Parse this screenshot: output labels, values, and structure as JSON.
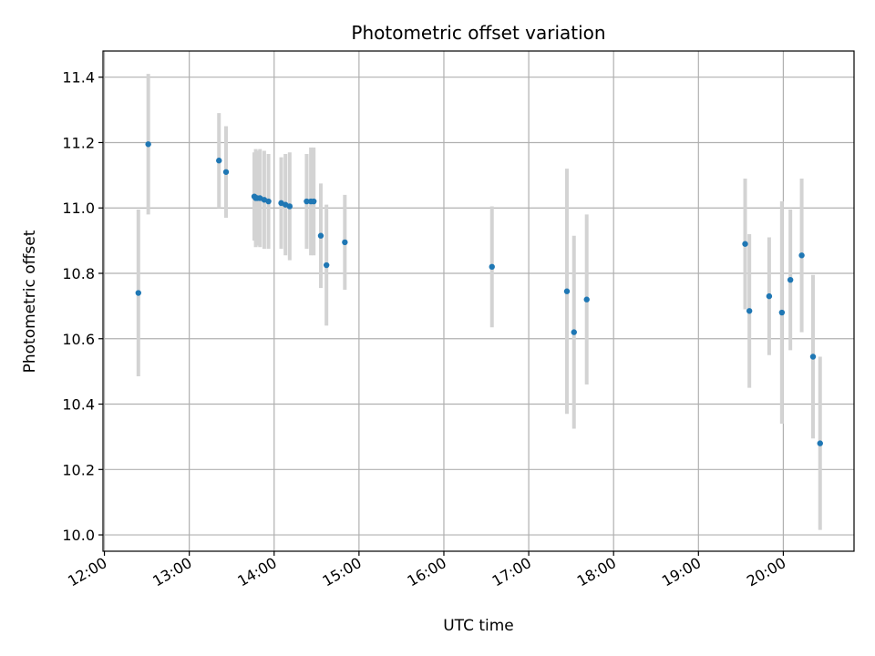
{
  "chart_data": {
    "type": "scatter",
    "title": "Photometric offset variation",
    "xlabel": "UTC time",
    "ylabel": "Photometric offset",
    "grid": true,
    "xlim": [
      "11:59",
      "20:50"
    ],
    "ylim": [
      9.95,
      11.48
    ],
    "x_ticks": [
      "12:00",
      "13:00",
      "14:00",
      "15:00",
      "16:00",
      "17:00",
      "18:00",
      "19:00",
      "20:00"
    ],
    "y_ticks": [
      10.0,
      10.2,
      10.4,
      10.6,
      10.8,
      11.0,
      11.2,
      11.4
    ],
    "colors": {
      "point": "#1f77b4",
      "errorbar": "#d3d3d3",
      "grid": "#b0b0b0"
    },
    "points": [
      {
        "x": "12:24",
        "y": 10.74,
        "yerr": 0.255
      },
      {
        "x": "12:31",
        "y": 11.195,
        "yerr": 0.215
      },
      {
        "x": "13:21",
        "y": 11.145,
        "yerr": 0.145
      },
      {
        "x": "13:26",
        "y": 11.11,
        "yerr": 0.14
      },
      {
        "x": "13:46",
        "y": 11.035,
        "yerr": 0.135
      },
      {
        "x": "13:47",
        "y": 11.03,
        "yerr": 0.15
      },
      {
        "x": "13:48",
        "y": 11.03,
        "yerr": 0.145
      },
      {
        "x": "13:50",
        "y": 11.03,
        "yerr": 0.15
      },
      {
        "x": "13:53",
        "y": 11.025,
        "yerr": 0.15
      },
      {
        "x": "13:56",
        "y": 11.02,
        "yerr": 0.145
      },
      {
        "x": "14:05",
        "y": 11.015,
        "yerr": 0.14
      },
      {
        "x": "14:08",
        "y": 11.01,
        "yerr": 0.155
      },
      {
        "x": "14:11",
        "y": 11.005,
        "yerr": 0.165
      },
      {
        "x": "14:23",
        "y": 11.02,
        "yerr": 0.145
      },
      {
        "x": "14:26",
        "y": 11.02,
        "yerr": 0.165
      },
      {
        "x": "14:28",
        "y": 11.02,
        "yerr": 0.165
      },
      {
        "x": "14:33",
        "y": 10.915,
        "yerr": 0.16
      },
      {
        "x": "14:37",
        "y": 10.825,
        "yerr": 0.185
      },
      {
        "x": "14:50",
        "y": 10.895,
        "yerr": 0.145
      },
      {
        "x": "16:34",
        "y": 10.82,
        "yerr": 0.185
      },
      {
        "x": "17:27",
        "y": 10.745,
        "yerr": 0.375
      },
      {
        "x": "17:32",
        "y": 10.62,
        "yerr": 0.295
      },
      {
        "x": "17:41",
        "y": 10.72,
        "yerr": 0.26
      },
      {
        "x": "19:33",
        "y": 10.89,
        "yerr": 0.2
      },
      {
        "x": "19:36",
        "y": 10.685,
        "yerr": 0.235
      },
      {
        "x": "19:50",
        "y": 10.73,
        "yerr": 0.18
      },
      {
        "x": "19:59",
        "y": 10.68,
        "yerr": 0.34
      },
      {
        "x": "20:05",
        "y": 10.78,
        "yerr": 0.215
      },
      {
        "x": "20:13",
        "y": 10.855,
        "yerr": 0.235
      },
      {
        "x": "20:21",
        "y": 10.545,
        "yerr": 0.25
      },
      {
        "x": "20:26",
        "y": 10.28,
        "yerr": 0.265
      }
    ]
  }
}
